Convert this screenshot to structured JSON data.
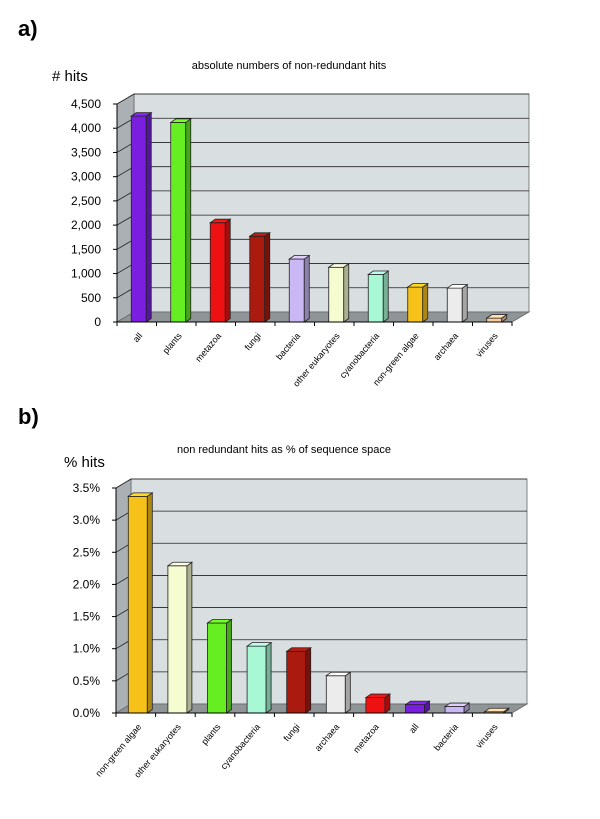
{
  "chart_data": [
    {
      "panel_label": "a)",
      "type": "bar",
      "title": "absolute numbers of non-redundant hits",
      "ylabel": "# hits",
      "xlabel": "",
      "ylim": [
        0,
        4500
      ],
      "yticks": [
        "0",
        "500",
        "1,000",
        "1,500",
        "2,000",
        "2,500",
        "3,000",
        "3,500",
        "4,000",
        "4,500"
      ],
      "categories": [
        "all",
        "plants",
        "metazoa",
        "fungi",
        "bacteria",
        "other eukaryotes",
        "cyanobacteria",
        "non-green algae",
        "archaea",
        "viruses"
      ],
      "values": [
        4250,
        4120,
        2050,
        1770,
        1300,
        1130,
        980,
        720,
        700,
        80
      ],
      "colors": [
        "#7a1fe0",
        "#66ee22",
        "#ee1111",
        "#aa1a0e",
        "#c9b8f4",
        "#f4fcd0",
        "#a8f8d6",
        "#f6c21a",
        "#ececec",
        "#f8caa0"
      ],
      "grid": true
    },
    {
      "panel_label": "b)",
      "type": "bar",
      "title": "non redundant hits as % of sequence space",
      "ylabel": "% hits",
      "xlabel": "",
      "ylim": [
        0,
        3.5
      ],
      "yticks": [
        "0.0%",
        "0.5%",
        "1.0%",
        "1.5%",
        "2.0%",
        "2.5%",
        "3.0%",
        "3.5%"
      ],
      "categories": [
        "non-green algae",
        "other eukaryotes",
        "plants",
        "cyanobacteria",
        "fungi",
        "archaea",
        "metazoa",
        "all",
        "bacteria",
        "viruses"
      ],
      "values": [
        3.37,
        2.29,
        1.4,
        1.04,
        0.96,
        0.58,
        0.24,
        0.13,
        0.1,
        0.02
      ],
      "colors": [
        "#f6c21a",
        "#f4fcd0",
        "#66ee22",
        "#a8f8d6",
        "#aa1a0e",
        "#ececec",
        "#ee1111",
        "#7a1fe0",
        "#c9b8f4",
        "#f8caa0"
      ],
      "grid": true
    }
  ]
}
